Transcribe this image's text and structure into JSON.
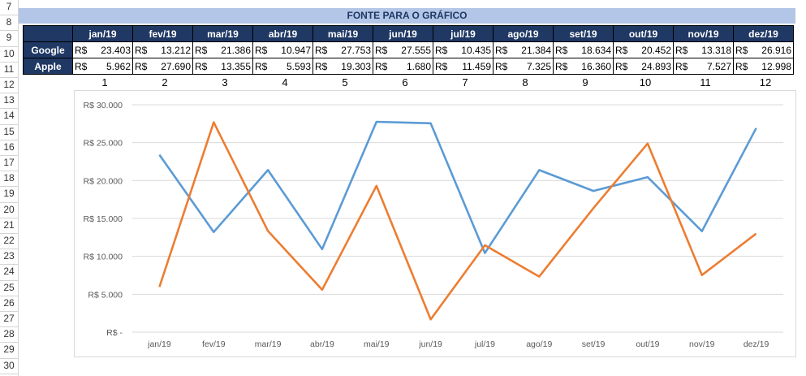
{
  "row_numbers": [
    "7",
    "8",
    "9",
    "10",
    "11",
    "12",
    "13",
    "14",
    "15",
    "16",
    "17",
    "18",
    "19",
    "20",
    "21",
    "22",
    "23",
    "24",
    "25",
    "26",
    "27",
    "28",
    "29",
    "30"
  ],
  "table": {
    "title": "FONTE PARA O GRÁFICO",
    "months": [
      "jan/19",
      "fev/19",
      "mar/19",
      "abr/19",
      "mai/19",
      "jun/19",
      "jul/19",
      "ago/19",
      "set/19",
      "out/19",
      "nov/19",
      "dez/19"
    ],
    "rows": [
      {
        "label": "Google",
        "values": [
          "23.403",
          "13.212",
          "21.386",
          "10.947",
          "27.753",
          "27.555",
          "10.435",
          "21.384",
          "18.634",
          "20.452",
          "13.318",
          "26.916"
        ]
      },
      {
        "label": "Apple",
        "values": [
          "5.962",
          "27.690",
          "13.355",
          "5.593",
          "19.303",
          "1.680",
          "11.459",
          "7.325",
          "16.360",
          "24.893",
          "7.527",
          "12.998"
        ]
      }
    ],
    "currency": "R$",
    "indices": [
      "1",
      "2",
      "3",
      "4",
      "5",
      "6",
      "7",
      "8",
      "9",
      "10",
      "11",
      "12"
    ]
  },
  "chart_data": {
    "type": "line",
    "categories": [
      "jan/19",
      "fev/19",
      "mar/19",
      "abr/19",
      "mai/19",
      "jun/19",
      "jul/19",
      "ago/19",
      "set/19",
      "out/19",
      "nov/19",
      "dez/19"
    ],
    "series": [
      {
        "name": "Google",
        "color": "#5b9bd5",
        "values": [
          23403,
          13212,
          21386,
          10947,
          27753,
          27555,
          10435,
          21384,
          18634,
          20452,
          13318,
          26916
        ]
      },
      {
        "name": "Apple",
        "color": "#ed7d31",
        "values": [
          5962,
          27690,
          13355,
          5593,
          19303,
          1680,
          11459,
          7325,
          16360,
          24893,
          7527,
          12998
        ]
      }
    ],
    "ylim": [
      0,
      30000
    ],
    "yticks": [
      "R$ -",
      "R$ 5.000",
      "R$ 10.000",
      "R$ 15.000",
      "R$ 20.000",
      "R$ 25.000",
      "R$ 30.000"
    ],
    "grid": true,
    "title": "",
    "xlabel": "",
    "ylabel": ""
  }
}
